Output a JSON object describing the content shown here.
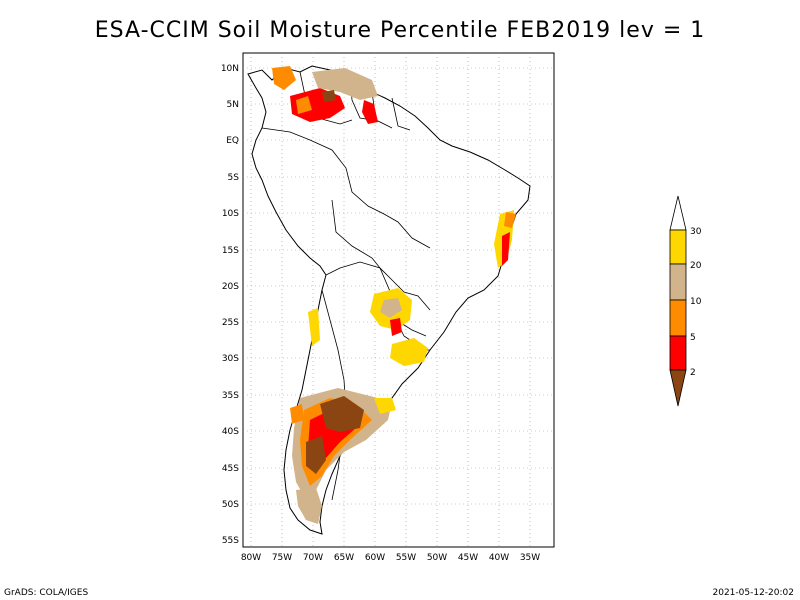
{
  "title": "ESA-CCIM Soil Moisture Percentile FEB2019 lev = 1",
  "lat_ticks": [
    "10N",
    "5N",
    "EQ",
    "5S",
    "10S",
    "15S",
    "20S",
    "25S",
    "30S",
    "35S",
    "40S",
    "45S",
    "50S",
    "55S"
  ],
  "lon_ticks": [
    "80W",
    "75W",
    "70W",
    "65W",
    "60W",
    "55W",
    "50W",
    "45W",
    "40W",
    "35W"
  ],
  "legend": {
    "labels": [
      "2",
      "5",
      "10",
      "20",
      "30"
    ],
    "colors": {
      "below_2": "#8b4513",
      "2_5": "#ff0000",
      "5_10": "#ff8c00",
      "10_20": "#d2b48c",
      "20_30": "#ffd700",
      "above_30": "#ffffff"
    }
  },
  "footer": {
    "left": "GrADS: COLA/IGES",
    "right": "2021-05-12-20:02"
  }
}
